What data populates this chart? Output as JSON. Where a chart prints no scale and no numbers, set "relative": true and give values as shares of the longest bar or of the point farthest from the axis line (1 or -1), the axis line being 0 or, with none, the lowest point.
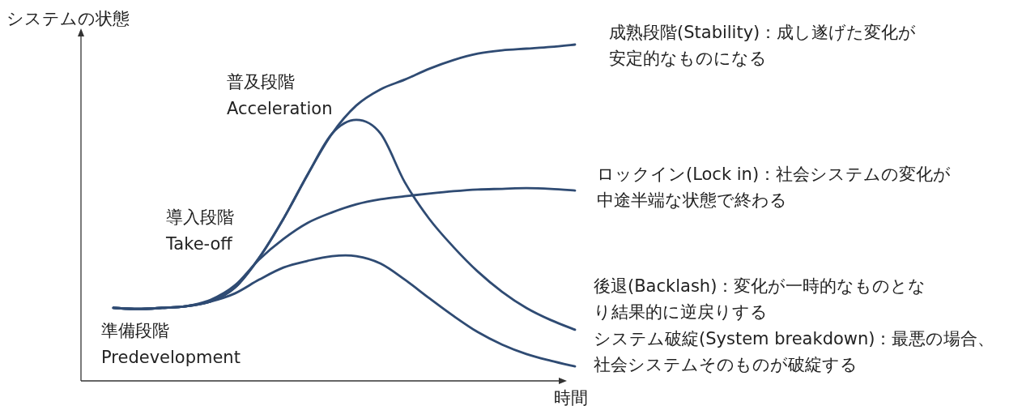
{
  "chart_data": {
    "type": "line",
    "relative": true,
    "ylabel": "システムの状態",
    "xlabel": "時間",
    "categories": [
      null,
      null,
      null,
      null,
      null,
      null,
      null,
      null,
      null,
      null,
      null,
      null,
      null,
      null,
      null,
      null,
      null,
      null,
      null,
      null
    ],
    "series": [
      {
        "name": "成熟段階(Stability)：成し遂げた変化が安定的なものになる",
        "color": "#2f4b73",
        "values": [
          0.217,
          0.214,
          0.217,
          0.222,
          0.236,
          0.277,
          0.366,
          0.482,
          0.614,
          0.735,
          0.819,
          0.867,
          0.896,
          0.928,
          0.954,
          0.973,
          0.983,
          0.988,
          0.993,
          1
        ]
      },
      {
        "name": "ロックイン(Lock in)：社会システムの変化が中途半端な状態で終わる",
        "color": "#2f4b73",
        "values": [
          0.217,
          0.214,
          0.217,
          0.222,
          0.241,
          0.284,
          0.361,
          0.422,
          0.47,
          0.501,
          0.525,
          0.54,
          0.549,
          0.557,
          0.564,
          0.569,
          0.571,
          0.573,
          0.571,
          0.566
        ]
      },
      {
        "name": "後退(Backlash)：変化が一時的なものとなり結果的に逆戻りする",
        "color": "#2f4b73",
        "values": [
          0.217,
          0.214,
          0.217,
          0.222,
          0.236,
          0.277,
          0.366,
          0.482,
          0.614,
          0.735,
          0.776,
          0.735,
          0.59,
          0.482,
          0.398,
          0.325,
          0.265,
          0.217,
          0.181,
          0.152
        ]
      },
      {
        "name": "システム破綻(System breakdown)：最悪の場合、社会システムそのものが破綻する",
        "color": "#2f4b73",
        "values": [
          0.217,
          0.214,
          0.217,
          0.222,
          0.236,
          0.26,
          0.301,
          0.337,
          0.357,
          0.371,
          0.371,
          0.349,
          0.301,
          0.246,
          0.193,
          0.145,
          0.108,
          0.08,
          0.06,
          0.043
        ]
      }
    ],
    "annotations": [
      "準備段階\nPredevelopment",
      "導入段階\nTake-off",
      "普及段階\nAcceleration"
    ]
  }
}
